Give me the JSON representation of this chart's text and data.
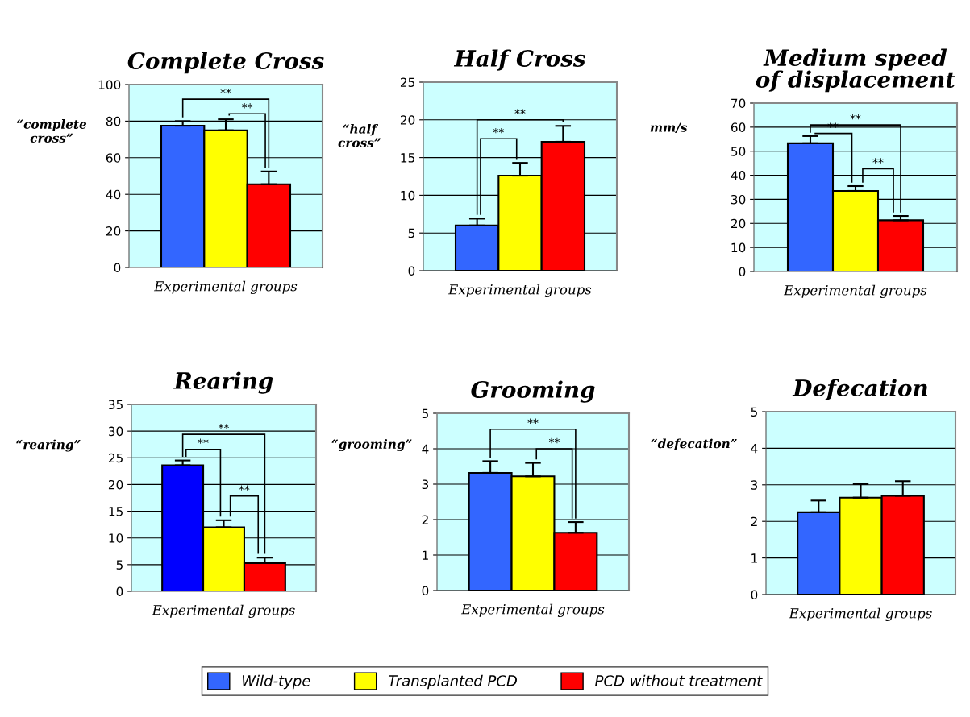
{
  "chart_data": [
    {
      "type": "bar",
      "title": "Complete Cross",
      "ylabel": "“complete\ncross”",
      "xlabel": "Experimental groups",
      "categories": [
        null
      ],
      "ylim": [
        0,
        100
      ],
      "yticks": [
        0,
        20,
        40,
        60,
        80,
        100
      ],
      "grid": "y",
      "annotations": [
        "**",
        "**"
      ],
      "series": [
        {
          "color": "#3366ff",
          "values": [
            77.5
          ],
          "errors": [
            2.5
          ]
        },
        {
          "color": "#ffff00",
          "values": [
            75
          ],
          "errors": [
            6
          ]
        },
        {
          "color": "#ff0000",
          "values": [
            45.5
          ],
          "errors": [
            7
          ]
        }
      ]
    },
    {
      "type": "bar",
      "title": "Half Cross",
      "ylabel": "“half\ncross”",
      "xlabel": "Experimental groups",
      "categories": [
        null
      ],
      "ylim": [
        0,
        25
      ],
      "yticks": [
        0,
        5,
        10,
        15,
        20,
        25
      ],
      "grid": "y",
      "annotations": [
        "**",
        "**"
      ],
      "series": [
        {
          "color": "#3366ff",
          "values": [
            6
          ],
          "errors": [
            0.9
          ]
        },
        {
          "color": "#ffff00",
          "values": [
            12.6
          ],
          "errors": [
            1.7
          ]
        },
        {
          "color": "#ff0000",
          "values": [
            17.1
          ],
          "errors": [
            2.1
          ]
        }
      ]
    },
    {
      "type": "bar",
      "title": "Medium speed\nof displacement",
      "ylabel": "mm/s",
      "xlabel": "Experimental groups",
      "categories": [
        null
      ],
      "ylim": [
        0,
        70
      ],
      "yticks": [
        0,
        10,
        20,
        30,
        40,
        50,
        60,
        70
      ],
      "grid": "y",
      "annotations": [
        "**",
        "**",
        "**"
      ],
      "series": [
        {
          "color": "#3366ff",
          "values": [
            53.3
          ],
          "errors": [
            3
          ]
        },
        {
          "color": "#ffff00",
          "values": [
            33.5
          ],
          "errors": [
            2
          ]
        },
        {
          "color": "#ff0000",
          "values": [
            21.3
          ],
          "errors": [
            1.8
          ]
        }
      ]
    },
    {
      "type": "bar",
      "title": "Rearing",
      "ylabel": "“rearing”",
      "xlabel": "Experimental groups",
      "categories": [
        null
      ],
      "ylim": [
        0,
        35
      ],
      "yticks": [
        0,
        5,
        10,
        15,
        20,
        25,
        30,
        35
      ],
      "grid": "y",
      "annotations": [
        "**",
        "**",
        "**"
      ],
      "series": [
        {
          "color": "#0000ff",
          "values": [
            23.6
          ],
          "errors": [
            0.9
          ]
        },
        {
          "color": "#ffff00",
          "values": [
            12
          ],
          "errors": [
            1.3
          ]
        },
        {
          "color": "#ff0000",
          "values": [
            5.3
          ],
          "errors": [
            1
          ]
        }
      ]
    },
    {
      "type": "bar",
      "title": "Grooming",
      "ylabel": "“grooming”",
      "xlabel": "Experimental groups",
      "categories": [
        null
      ],
      "ylim": [
        0,
        5
      ],
      "yticks": [
        0,
        1,
        2,
        3,
        4,
        5
      ],
      "grid": "y",
      "legend": "bottom",
      "annotations": [
        "**",
        "**"
      ],
      "series": [
        {
          "name": "Wild-type",
          "color": "#3366ff",
          "values": [
            3.32
          ],
          "errors": [
            0.33
          ]
        },
        {
          "name": "Transplanted PCD",
          "color": "#ffff00",
          "values": [
            3.22
          ],
          "errors": [
            0.38
          ]
        },
        {
          "name": "PCD without treatment",
          "color": "#ff0000",
          "values": [
            1.63
          ],
          "errors": [
            0.3
          ]
        }
      ]
    },
    {
      "type": "bar",
      "title": "Defecation",
      "ylabel": "“defecation”",
      "xlabel": "Experimental groups",
      "categories": [
        null
      ],
      "ylim": [
        0,
        5
      ],
      "yticks": [
        0,
        1,
        2,
        3,
        4,
        5
      ],
      "grid": "y",
      "series": [
        {
          "color": "#3366ff",
          "values": [
            2.25
          ],
          "errors": [
            0.32
          ]
        },
        {
          "color": "#ffff00",
          "values": [
            2.65
          ],
          "errors": [
            0.37
          ]
        },
        {
          "color": "#ff0000",
          "values": [
            2.7
          ],
          "errors": [
            0.4
          ]
        }
      ]
    }
  ]
}
